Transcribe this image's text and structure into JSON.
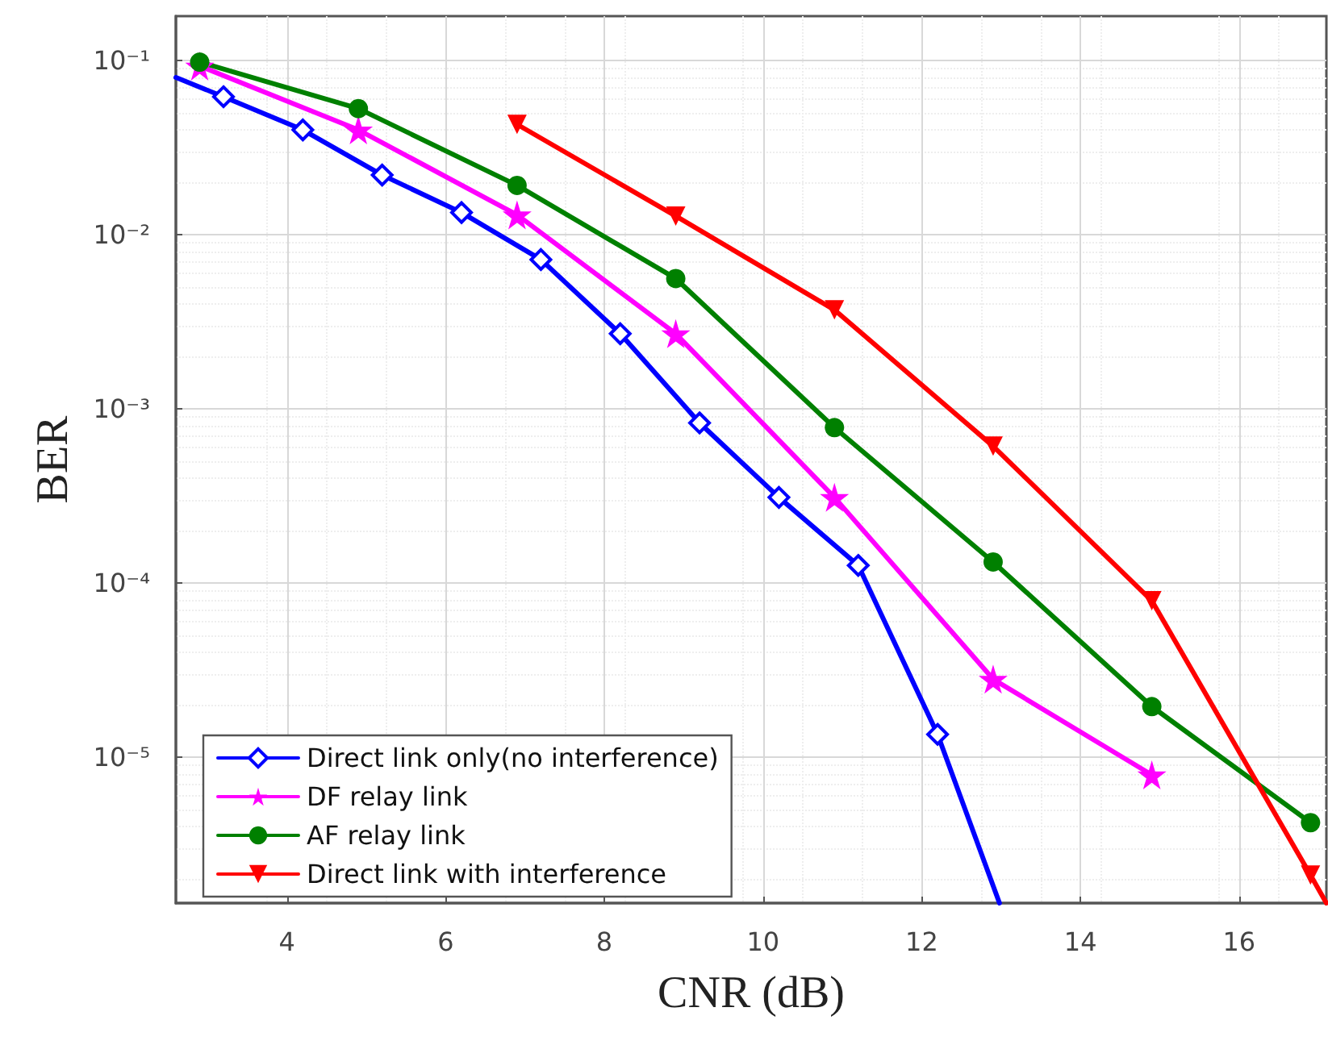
{
  "chart_data": {
    "type": "line",
    "xlabel": "CNR (dB)",
    "ylabel": "BER",
    "log": "y",
    "grid": true,
    "legend": "bottom left",
    "xlim": [
      2.6,
      17.1
    ],
    "xticks": [
      4,
      6,
      8,
      10,
      12,
      14,
      16
    ],
    "ylim": [
      1.45e-06,
      0.18
    ],
    "yticks": [
      {
        "value": 1e-05,
        "label": "10⁻⁵"
      },
      {
        "value": 0.0001,
        "label": "10⁻⁴"
      },
      {
        "value": 0.001,
        "label": "10⁻³"
      },
      {
        "value": 0.01,
        "label": "10⁻²"
      },
      {
        "value": 0.1,
        "label": "10⁻¹"
      }
    ],
    "series": [
      {
        "name": "Direct link only(no interference)",
        "color": "#0000ff",
        "marker": "diamond",
        "x": [
          2.6,
          3.2,
          4.2,
          5.2,
          6.2,
          7.2,
          8.2,
          9.2,
          10.2,
          11.2,
          12.2,
          12.98
        ],
        "values": [
          0.08,
          0.062,
          0.04,
          0.022,
          0.0134,
          0.0072,
          0.0027,
          0.00083,
          0.00031,
          0.000126,
          1.35e-05,
          1.45e-06
        ]
      },
      {
        "name": "DF relay link",
        "color": "#ff00ff",
        "marker": "star",
        "x": [
          2.9,
          4.9,
          6.9,
          8.9,
          10.9,
          12.9,
          14.9
        ],
        "values": [
          0.093,
          0.04,
          0.013,
          0.0027,
          0.00031,
          2.8e-05,
          7.9e-06
        ]
      },
      {
        "name": "AF relay link",
        "color": "#008000",
        "marker": "circle",
        "x": [
          2.9,
          4.9,
          6.9,
          8.9,
          10.9,
          12.9,
          14.9,
          16.9
        ],
        "values": [
          0.098,
          0.053,
          0.0192,
          0.0056,
          0.00078,
          0.000132,
          1.95e-05,
          4.2e-06
        ]
      },
      {
        "name": "Direct link with interference",
        "color": "#ff0000",
        "marker": "triangle",
        "x": [
          6.9,
          8.9,
          10.9,
          12.9,
          14.9,
          16.9,
          17.1
        ],
        "values": [
          0.043,
          0.0128,
          0.0037,
          0.00061,
          7.9e-05,
          2.1e-06,
          1.45e-06
        ]
      }
    ]
  }
}
